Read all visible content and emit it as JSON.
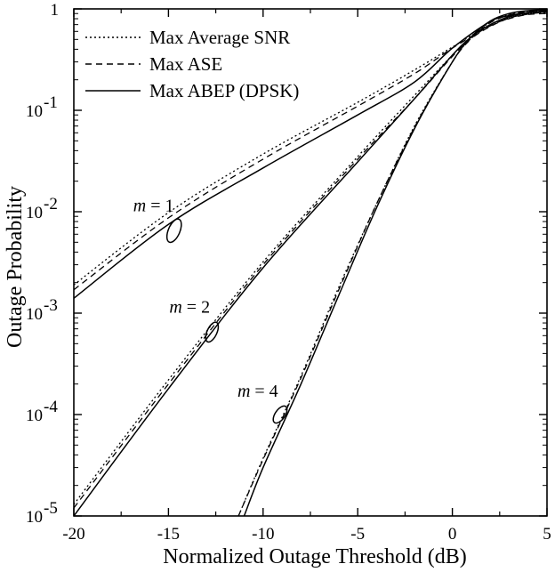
{
  "chart_data": {
    "type": "line",
    "title": "",
    "xlabel": "Normalized Outage Threshold (dB)",
    "ylabel": "Outage Probability",
    "xlim": [
      -20,
      5
    ],
    "ylim": [
      1e-05,
      1
    ],
    "yscale": "log",
    "grid": false,
    "legend_position": "top-left",
    "x_ticks": [
      -20,
      -15,
      -10,
      -5,
      0,
      5
    ],
    "x_tick_labels": [
      "-20",
      "-15",
      "-10",
      "-5",
      "0",
      "5"
    ],
    "y_ticks": [
      1e-05,
      0.0001,
      0.001,
      0.01,
      0.1,
      1
    ],
    "y_tick_labels": [
      {
        "base": "10",
        "exp": "-5"
      },
      {
        "base": "10",
        "exp": "-4"
      },
      {
        "base": "10",
        "exp": "-3"
      },
      {
        "base": "10",
        "exp": "-2"
      },
      {
        "base": "10",
        "exp": "-1"
      },
      {
        "base": "1",
        "exp": ""
      }
    ],
    "legend": [
      {
        "label": "Max Average SNR",
        "style": "dotted"
      },
      {
        "label": "Max ASE",
        "style": "dashed"
      },
      {
        "label": "Max ABEP (DPSK)",
        "style": "solid"
      }
    ],
    "annotations": [
      {
        "label": "m = 1",
        "var": "m",
        "rest": " = 1",
        "x": -14.7,
        "y": 0.0065
      },
      {
        "label": "m = 2",
        "var": "m",
        "rest": " = 2",
        "x": -12.7,
        "y": 0.00065
      },
      {
        "label": "m = 4",
        "var": "m",
        "rest": " = 4",
        "x": -9.1,
        "y": 0.0001
      }
    ],
    "series": [
      {
        "group": "m = 1",
        "style": "dotted",
        "points": [
          [
            -20,
            0.0019
          ],
          [
            -15,
            0.0098
          ],
          [
            -10,
            0.037
          ],
          [
            -5,
            0.12
          ],
          [
            -2,
            0.25
          ],
          [
            0,
            0.42
          ],
          [
            2,
            0.7
          ],
          [
            3,
            0.82
          ],
          [
            4,
            0.9
          ],
          [
            5,
            0.92
          ]
        ]
      },
      {
        "group": "m = 1",
        "style": "dashed",
        "points": [
          [
            -20,
            0.0017
          ],
          [
            -15,
            0.0087
          ],
          [
            -10,
            0.033
          ],
          [
            -5,
            0.11
          ],
          [
            -2,
            0.23
          ],
          [
            0,
            0.41
          ],
          [
            2,
            0.68
          ],
          [
            3,
            0.8
          ],
          [
            4,
            0.88
          ],
          [
            5,
            0.9
          ]
        ]
      },
      {
        "group": "m = 1",
        "style": "solid",
        "points": [
          [
            -20,
            0.0014
          ],
          [
            -15,
            0.0075
          ],
          [
            -10,
            0.027
          ],
          [
            -5,
            0.09
          ],
          [
            -2,
            0.19
          ],
          [
            0,
            0.41
          ],
          [
            2,
            0.75
          ],
          [
            3,
            0.86
          ],
          [
            4,
            0.92
          ],
          [
            5,
            0.94
          ]
        ]
      },
      {
        "group": "m = 2",
        "style": "dotted",
        "points": [
          [
            -20,
            1.3e-05
          ],
          [
            -15,
            0.00022
          ],
          [
            -10,
            0.0032
          ],
          [
            -5,
            0.035
          ],
          [
            -2,
            0.14
          ],
          [
            0,
            0.35
          ],
          [
            1,
            0.52
          ],
          [
            2,
            0.68
          ],
          [
            3,
            0.82
          ],
          [
            4,
            0.9
          ],
          [
            5,
            0.94
          ]
        ]
      },
      {
        "group": "m = 2",
        "style": "dashed",
        "points": [
          [
            -20,
            1.2e-05
          ],
          [
            -15,
            0.0002
          ],
          [
            -10,
            0.003
          ],
          [
            -5,
            0.033
          ],
          [
            -2,
            0.13
          ],
          [
            0,
            0.34
          ],
          [
            1,
            0.51
          ],
          [
            2,
            0.67
          ],
          [
            3,
            0.81
          ],
          [
            4,
            0.89
          ],
          [
            5,
            0.93
          ]
        ]
      },
      {
        "group": "m = 2",
        "style": "solid",
        "points": [
          [
            -20,
            1e-05
          ],
          [
            -15,
            0.00018
          ],
          [
            -10,
            0.0028
          ],
          [
            -5,
            0.031
          ],
          [
            -2,
            0.13
          ],
          [
            0,
            0.35
          ],
          [
            1,
            0.53
          ],
          [
            2,
            0.7
          ],
          [
            3,
            0.84
          ],
          [
            4,
            0.92
          ],
          [
            5,
            0.96
          ]
        ]
      },
      {
        "group": "m = 4",
        "style": "dotted",
        "points": [
          [
            -11.3,
            1e-05
          ],
          [
            -10,
            3.7e-05
          ],
          [
            -8,
            0.00024
          ],
          [
            -6,
            0.0018
          ],
          [
            -4,
            0.012
          ],
          [
            -2,
            0.07
          ],
          [
            0,
            0.3
          ],
          [
            1,
            0.52
          ],
          [
            2,
            0.74
          ],
          [
            3,
            0.88
          ],
          [
            4,
            0.95
          ],
          [
            5,
            0.97
          ]
        ]
      },
      {
        "group": "m = 4",
        "style": "dashed",
        "points": [
          [
            -11.3,
            1e-05
          ],
          [
            -10,
            3.6e-05
          ],
          [
            -8,
            0.00023
          ],
          [
            -6,
            0.0017
          ],
          [
            -4,
            0.012
          ],
          [
            -2,
            0.068
          ],
          [
            0,
            0.3
          ],
          [
            1,
            0.51
          ],
          [
            2,
            0.73
          ],
          [
            3,
            0.87
          ],
          [
            4,
            0.94
          ],
          [
            5,
            0.96
          ]
        ]
      },
      {
        "group": "m = 4",
        "style": "solid",
        "points": [
          [
            -11.0,
            1e-05
          ],
          [
            -10,
            3e-05
          ],
          [
            -8,
            0.0002
          ],
          [
            -6,
            0.0015
          ],
          [
            -4,
            0.011
          ],
          [
            -2,
            0.066
          ],
          [
            0,
            0.3
          ],
          [
            1,
            0.53
          ],
          [
            2,
            0.76
          ],
          [
            3,
            0.9
          ],
          [
            4,
            0.96
          ],
          [
            5,
            0.98
          ]
        ]
      }
    ]
  }
}
